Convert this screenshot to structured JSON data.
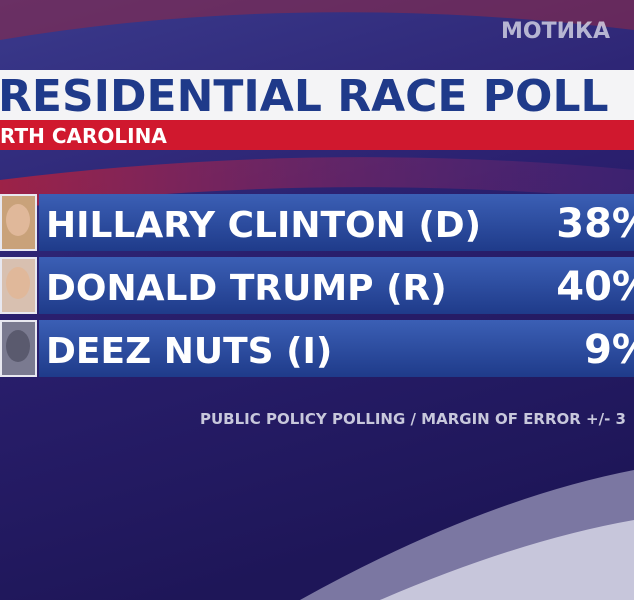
{
  "watermark": "МОТИКА",
  "header": {
    "title": "RESIDENTIAL RACE POLL",
    "subtitle": "RTH CAROLINA"
  },
  "rows": [
    {
      "name": "HILLARY CLINTON (D)",
      "value": "38%"
    },
    {
      "name": "DONALD TRUMP (R)",
      "value": "40%"
    },
    {
      "name": "DEEZ NUTS (I)",
      "value": "9%"
    }
  ],
  "footer": "PUBLIC POLICY POLLING / MARGIN OF ERROR +/- 3"
}
